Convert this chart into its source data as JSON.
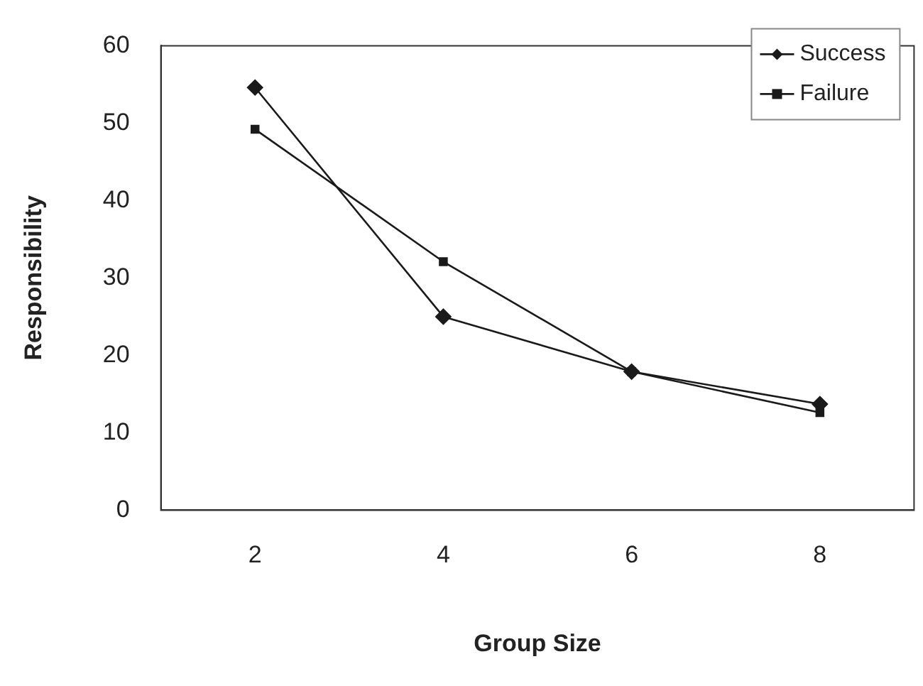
{
  "chart_data": {
    "type": "line",
    "xlabel": "Group Size",
    "ylabel": "Responsibility",
    "categories": [
      "2",
      "4",
      "6",
      "8"
    ],
    "series": [
      {
        "name": "Success",
        "color": "#1a1a1a",
        "marker": "diamond",
        "values": [
          54.6,
          25.0,
          17.9,
          13.7
        ]
      },
      {
        "name": "Failure",
        "color": "#1a1a1a",
        "marker": "square",
        "values": [
          49.2,
          32.1,
          17.9,
          12.6
        ]
      }
    ],
    "ylim": [
      0,
      60
    ],
    "yticks": [
      0,
      10,
      20,
      30,
      40,
      50,
      60
    ],
    "grid": false,
    "legend": "top right",
    "line_style": "solid"
  }
}
